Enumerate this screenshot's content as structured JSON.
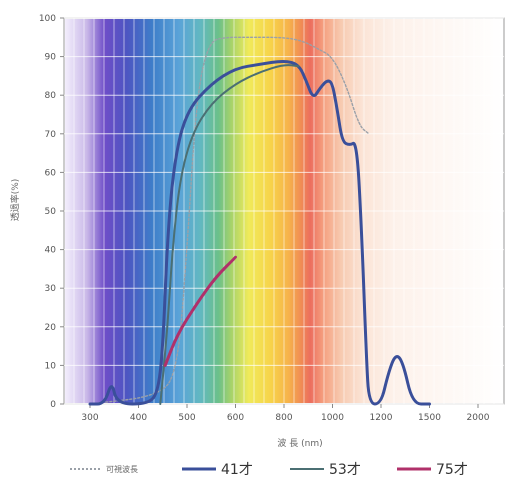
{
  "chart_data": {
    "type": "line",
    "title": "",
    "xlabel": "波 長 (nm)",
    "ylabel": "透過率(%)",
    "ylim": [
      0,
      100
    ],
    "y_ticks": [
      0,
      10,
      20,
      30,
      40,
      50,
      60,
      70,
      80,
      90,
      100
    ],
    "x_ticks": [
      "300",
      "400",
      "500",
      "600",
      "800",
      "1000",
      "1200",
      "1500",
      "2000"
    ],
    "grid": true,
    "legend_position": "bottom",
    "background": "visible spectrum color bands",
    "colors": {
      "reference": "#9aa0a8",
      "age41": "#3a4f9a",
      "age53": "#4b6f73",
      "age75": "#b0306a"
    },
    "series": [
      {
        "name": "可視波長",
        "style": "dotted",
        "points": [
          [
            0,
            0
          ],
          [
            1.4,
            2
          ],
          [
            1.8,
            8
          ],
          [
            2.0,
            40
          ],
          [
            2.2,
            80
          ],
          [
            2.45,
            94
          ],
          [
            2.8,
            95
          ],
          [
            3.2,
            95
          ],
          [
            4.0,
            95
          ],
          [
            4.4,
            94
          ],
          [
            4.7,
            92
          ],
          [
            5.0,
            90
          ],
          [
            5.3,
            82
          ],
          [
            5.55,
            72
          ],
          [
            5.75,
            70
          ]
        ]
      },
      {
        "name": "41才",
        "style": "solid",
        "points": [
          [
            0,
            0
          ],
          [
            0.3,
            0
          ],
          [
            0.45,
            6
          ],
          [
            0.55,
            0
          ],
          [
            1.2,
            0
          ],
          [
            1.4,
            3
          ],
          [
            1.5,
            14
          ],
          [
            1.6,
            44
          ],
          [
            1.75,
            64
          ],
          [
            2.0,
            76
          ],
          [
            2.5,
            83
          ],
          [
            3.0,
            87
          ],
          [
            3.5,
            88
          ],
          [
            4.0,
            89
          ],
          [
            4.3,
            88
          ],
          [
            4.45,
            84
          ],
          [
            4.6,
            79
          ],
          [
            4.75,
            82
          ],
          [
            4.9,
            84
          ],
          [
            5.0,
            83
          ],
          [
            5.1,
            76
          ],
          [
            5.2,
            68
          ],
          [
            5.35,
            67
          ],
          [
            5.5,
            68
          ],
          [
            5.6,
            45
          ],
          [
            5.7,
            12
          ],
          [
            5.75,
            0
          ],
          [
            6.0,
            0
          ],
          [
            6.15,
            8
          ],
          [
            6.3,
            13
          ],
          [
            6.45,
            11
          ],
          [
            6.65,
            0
          ],
          [
            7.0,
            0
          ]
        ]
      },
      {
        "name": "53才",
        "style": "solid",
        "points": [
          [
            1.45,
            0
          ],
          [
            1.6,
            20
          ],
          [
            1.7,
            40
          ],
          [
            1.85,
            58
          ],
          [
            2.1,
            70
          ],
          [
            2.5,
            78
          ],
          [
            3.0,
            83
          ],
          [
            3.5,
            86
          ],
          [
            4.0,
            88
          ],
          [
            4.3,
            87.5
          ]
        ]
      },
      {
        "name": "75才",
        "style": "solid",
        "points": [
          [
            1.55,
            10
          ],
          [
            1.8,
            18
          ],
          [
            2.2,
            26
          ],
          [
            2.6,
            33
          ],
          [
            3.0,
            38
          ]
        ]
      }
    ]
  },
  "legend": {
    "reference_label": "可視波長",
    "age41_label": "41才",
    "age53_label": "53才",
    "age75_label": "75才"
  }
}
